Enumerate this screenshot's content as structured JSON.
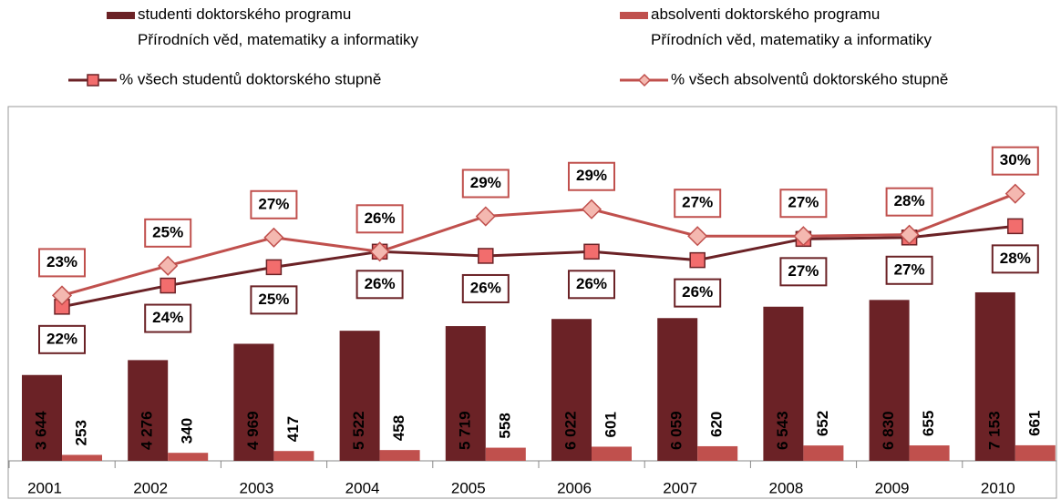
{
  "chart_data": {
    "type": "bar",
    "categories": [
      "2001",
      "2002",
      "2003",
      "2004",
      "2005",
      "2006",
      "2007",
      "2008",
      "2009",
      "2010"
    ],
    "ylim": [
      0,
      15000
    ],
    "y2lim": [
      11.5,
      36.5
    ],
    "series": [
      {
        "name": "studenti doktorského programu\nPřírodních věd, matematiky a informatiky",
        "type": "bar",
        "color": "#6b2226",
        "values": [
          3644,
          4276,
          4969,
          5522,
          5719,
          6022,
          6059,
          6543,
          6830,
          7153
        ],
        "value_labels": [
          "3 644",
          "4 276",
          "4 969",
          "5 522",
          "5 719",
          "6 022",
          "6 059",
          "6 543",
          "6 830",
          "7 153"
        ]
      },
      {
        "name": "absolventi doktorského programu\nPřírodních věd, matematiky a informatiky",
        "type": "bar",
        "color": "#c0504d",
        "values": [
          253,
          340,
          417,
          458,
          558,
          601,
          620,
          652,
          655,
          661
        ]
      },
      {
        "name": "% všech studentů doktorského stupně",
        "type": "line",
        "axis": "y2",
        "color": "#6b2226",
        "marker": "square",
        "values": [
          22.4,
          23.9,
          25.2,
          26.3,
          26.0,
          26.3,
          25.7,
          27.2,
          27.3,
          28.1
        ],
        "value_labels": [
          "22%",
          "24%",
          "25%",
          "26%",
          "26%",
          "26%",
          "26%",
          "27%",
          "27%",
          "28%"
        ]
      },
      {
        "name": "% všech absolventů doktorského stupně",
        "type": "line",
        "axis": "y2",
        "color": "#c0504d",
        "marker": "diamond",
        "values": [
          23.2,
          25.3,
          27.3,
          26.3,
          28.8,
          29.3,
          27.4,
          27.4,
          27.5,
          30.4
        ],
        "value_labels": [
          "23%",
          "25%",
          "27%",
          "26%",
          "29%",
          "29%",
          "27%",
          "27%",
          "28%",
          "30%"
        ]
      }
    ]
  }
}
